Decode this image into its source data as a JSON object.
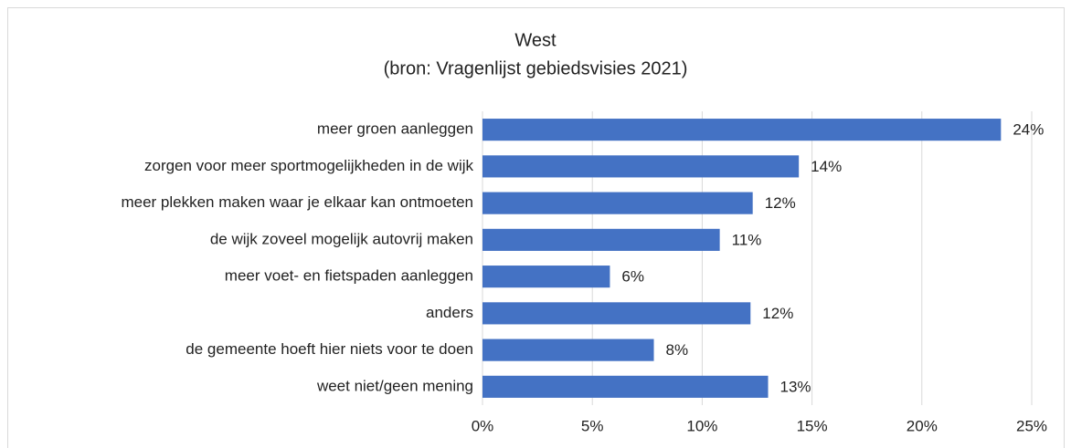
{
  "chart_data": {
    "type": "bar",
    "orientation": "horizontal",
    "title": "West",
    "subtitle": "(bron: Vragenlijst gebiedsvisies 2021)",
    "categories": [
      "meer groen aanleggen",
      "zorgen voor meer sportmogelijkheden in de wijk",
      "meer plekken maken waar je elkaar kan ontmoeten",
      "de wijk zoveel mogelijk autovrij maken",
      "meer voet- en fietspaden aanleggen",
      "anders",
      "de gemeente hoeft hier niets voor te doen",
      "weet niet/geen mening"
    ],
    "values": [
      23.6,
      14.4,
      12.3,
      10.8,
      5.8,
      12.2,
      7.8,
      13.0
    ],
    "value_labels": [
      "24%",
      "14%",
      "12%",
      "11%",
      "6%",
      "12%",
      "8%",
      "13%"
    ],
    "color": "#4472c4",
    "xlim": [
      0,
      25
    ],
    "xticks": [
      {
        "value": 0,
        "label": "0%"
      },
      {
        "value": 5,
        "label": "5%"
      },
      {
        "value": 10,
        "label": "10%"
      },
      {
        "value": 15,
        "label": "15%"
      },
      {
        "value": 20,
        "label": "20%"
      },
      {
        "value": 25,
        "label": "25%"
      }
    ],
    "grid": true
  }
}
